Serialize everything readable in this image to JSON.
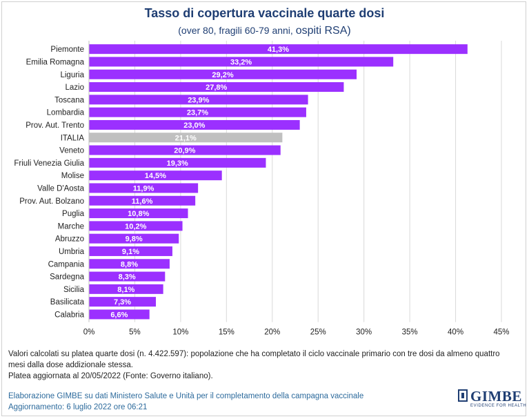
{
  "chart_data": {
    "type": "bar",
    "orientation": "horizontal",
    "title": "Tasso di copertura vaccinale quarte dosi",
    "subtitle_part1": "(over 80, fragili 60-79 anni, ",
    "subtitle_part2": "ospiti RSA)",
    "categories": [
      "Piemonte",
      "Emilia Romagna",
      "Liguria",
      "Lazio",
      "Toscana",
      "Lombardia",
      "Prov. Aut. Trento",
      "ITALIA",
      "Veneto",
      "Friuli Venezia Giulia",
      "Molise",
      "Valle D'Aosta",
      "Prov. Aut. Bolzano",
      "Puglia",
      "Marche",
      "Abruzzo",
      "Umbria",
      "Campania",
      "Sardegna",
      "Sicilia",
      "Basilicata",
      "Calabria"
    ],
    "values": [
      41.3,
      33.2,
      29.2,
      27.8,
      23.9,
      23.7,
      23.0,
      21.1,
      20.9,
      19.3,
      14.5,
      11.9,
      11.6,
      10.8,
      10.2,
      9.8,
      9.1,
      8.8,
      8.3,
      8.1,
      7.3,
      6.6
    ],
    "value_labels": [
      "41,3%",
      "33,2%",
      "29,2%",
      "27,8%",
      "23,9%",
      "23,7%",
      "23,0%",
      "21,1%",
      "20,9%",
      "19,3%",
      "14,5%",
      "11,9%",
      "11,6%",
      "10,8%",
      "10,2%",
      "9,8%",
      "9,1%",
      "8,8%",
      "8,3%",
      "8,1%",
      "7,3%",
      "6,6%"
    ],
    "highlight_category": "ITALIA",
    "xlim": [
      0,
      45
    ],
    "xticks": [
      0,
      5,
      10,
      15,
      20,
      25,
      30,
      35,
      40,
      45
    ],
    "xtick_labels": [
      "0%",
      "5%",
      "10%",
      "15%",
      "20%",
      "25%",
      "30%",
      "35%",
      "40%",
      "45%"
    ],
    "grid": "vertical",
    "colors": {
      "bar": "#9b30ff",
      "highlight": "#c0c0c0",
      "grid": "#d9d9d9"
    }
  },
  "notes": {
    "line1": "Valori calcolati su platea quarte dosi (n. 4.422.597): popolazione che ha completato il ciclo vaccinale primario con tre dosi da almeno quattro mesi dalla dose addizionale stessa.",
    "line2": "Platea aggiornata al 20/05/2022 (Fonte: Governo italiano)."
  },
  "credit": {
    "line1": "Elaborazione GIMBE su dati Ministero Salute e Unità per il completamento della campagna vaccinale",
    "line2": "Aggiornamento: 6 luglio 2022 ore 06:21"
  },
  "logo": {
    "name": "GIMBE",
    "tagline": "EVIDENCE FOR HEALTH"
  }
}
